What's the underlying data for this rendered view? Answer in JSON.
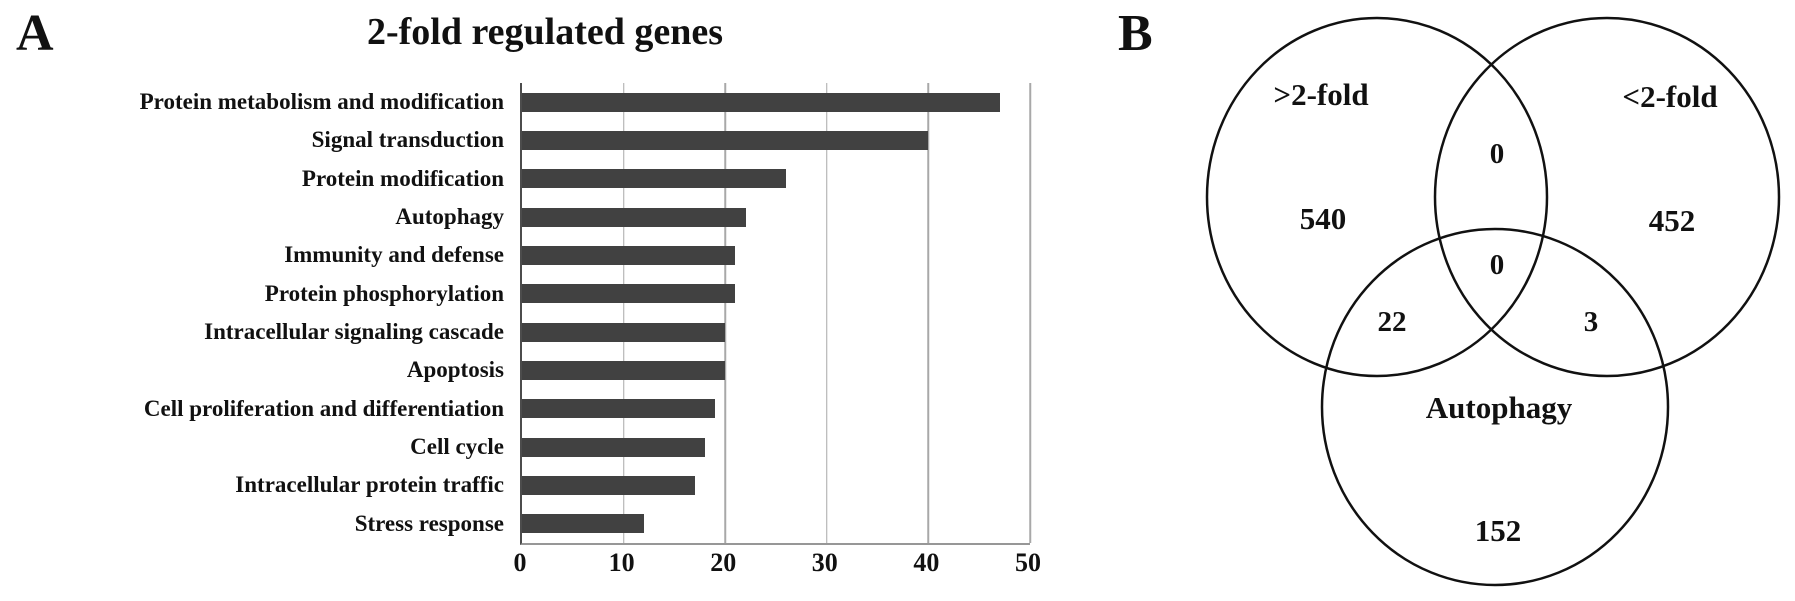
{
  "figure": {
    "panel_a": {
      "label": "A"
    },
    "panel_b": {
      "label": "B"
    }
  },
  "chart_data": [
    {
      "type": "bar",
      "orientation": "horizontal",
      "title": "2-fold regulated genes",
      "categories": [
        "Protein metabolism and modification",
        "Signal transduction",
        "Protein modification",
        "Autophagy",
        "Immunity and defense",
        "Protein phosphorylation",
        "Intracellular signaling cascade",
        "Apoptosis",
        "Cell proliferation and differentiation",
        "Cell cycle",
        "Intracellular protein traffic",
        "Stress response"
      ],
      "values": [
        47,
        40,
        26,
        22,
        21,
        21,
        20,
        20,
        19,
        18,
        17,
        12
      ],
      "xlabel": "",
      "ylabel": "",
      "xlim": [
        0,
        50
      ],
      "xticks": [
        0,
        10,
        20,
        30,
        40,
        50
      ],
      "grid": "vertical",
      "legend": "none"
    },
    {
      "type": "venn",
      "set_labels": {
        "a": ">2-fold",
        "b": "<2-fold",
        "c": "Autophagy"
      },
      "counts": {
        "a_only": 540,
        "b_only": 452,
        "c_only": 152,
        "ab": 0,
        "abc": 0,
        "ac": 22,
        "bc": 3
      }
    }
  ],
  "colors": {
    "bar": "#414141",
    "gridline": "#a8a8a8",
    "axis_left": "#4c4c4c",
    "axis_bottom": "#979797",
    "text": "#111111",
    "venn_stroke": "#111111"
  }
}
